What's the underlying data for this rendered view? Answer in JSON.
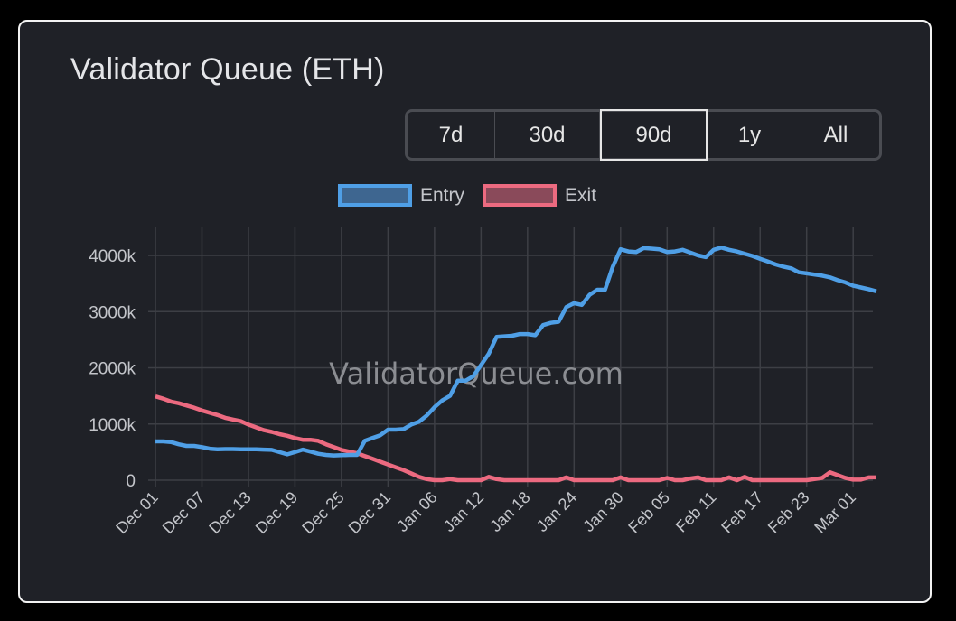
{
  "title": "Validator Queue (ETH)",
  "range_buttons": [
    {
      "label": "7d",
      "active": false
    },
    {
      "label": "30d",
      "active": false
    },
    {
      "label": "90d",
      "active": true
    },
    {
      "label": "1y",
      "active": false
    },
    {
      "label": "All",
      "active": false
    }
  ],
  "watermark": "ValidatorQueue.com",
  "chart_data": {
    "type": "line",
    "title": "Validator Queue (ETH)",
    "xlabel": "",
    "ylabel": "",
    "ylim": [
      0,
      4400
    ],
    "y_ticks": [
      0,
      1000,
      2000,
      3000,
      4000
    ],
    "y_tick_labels": [
      "0",
      "1000k",
      "2000k",
      "3000k",
      "4000k"
    ],
    "x_tick_every_days": 6,
    "x_tick_labels": [
      "Dec 01",
      "Dec 07",
      "Dec 13",
      "Dec 19",
      "Dec 25",
      "Dec 31",
      "Jan 06",
      "Jan 12",
      "Jan 18",
      "Jan 24",
      "Jan 30",
      "Feb 05",
      "Feb 11",
      "Feb 17",
      "Feb 23",
      "Mar 01"
    ],
    "grid": true,
    "legend_position": "top-center",
    "units": "thousand ETH",
    "series": [
      {
        "name": "Entry",
        "color": "#4f9fe6",
        "fill": "#3e6690",
        "values": [
          690,
          690,
          680,
          640,
          610,
          610,
          590,
          560,
          550,
          555,
          555,
          550,
          550,
          550,
          545,
          540,
          500,
          460,
          500,
          545,
          510,
          470,
          450,
          440,
          445,
          450,
          450,
          700,
          750,
          800,
          900,
          900,
          910,
          990,
          1040,
          1150,
          1300,
          1420,
          1500,
          1770,
          1770,
          1850,
          2050,
          2250,
          2550,
          2560,
          2570,
          2600,
          2600,
          2580,
          2760,
          2800,
          2820,
          3080,
          3150,
          3120,
          3300,
          3390,
          3390,
          3800,
          4110,
          4070,
          4060,
          4130,
          4120,
          4110,
          4060,
          4070,
          4100,
          4050,
          4000,
          3970,
          4100,
          4140,
          4100,
          4070,
          4030,
          3990,
          3940,
          3890,
          3840,
          3800,
          3770,
          3700,
          3680,
          3660,
          3640,
          3610,
          3560,
          3520,
          3460,
          3430,
          3400,
          3360
        ]
      },
      {
        "name": "Exit",
        "color": "#ec6a80",
        "fill": "#8a4a5a",
        "values": [
          1490,
          1450,
          1400,
          1370,
          1330,
          1290,
          1240,
          1200,
          1160,
          1110,
          1080,
          1050,
          990,
          940,
          890,
          860,
          820,
          790,
          750,
          720,
          720,
          700,
          640,
          590,
          540,
          510,
          480,
          430,
          380,
          330,
          280,
          230,
          180,
          120,
          60,
          20,
          0,
          0,
          20,
          0,
          0,
          0,
          0,
          60,
          20,
          0,
          0,
          0,
          0,
          0,
          0,
          0,
          0,
          50,
          0,
          0,
          0,
          0,
          0,
          0,
          50,
          0,
          0,
          0,
          0,
          0,
          40,
          0,
          0,
          30,
          50,
          0,
          0,
          0,
          50,
          0,
          60,
          0,
          0,
          0,
          0,
          0,
          0,
          0,
          0,
          20,
          40,
          140,
          90,
          40,
          10,
          10,
          50,
          50
        ]
      }
    ]
  }
}
